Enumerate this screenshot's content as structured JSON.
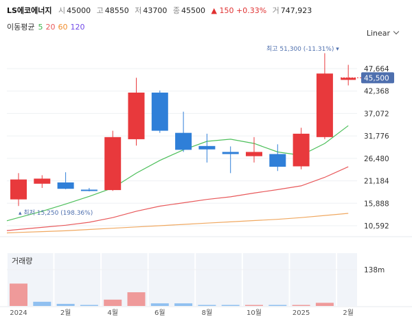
{
  "header": {
    "name": "LS에코에너지",
    "open_label": "시",
    "open": "45000",
    "high_label": "고",
    "high": "48550",
    "low_label": "저",
    "low": "43700",
    "close_label": "종",
    "close": "45500",
    "change": "▲ 150 +0.33%",
    "volume_label": "거",
    "volume": "747,923"
  },
  "moving_average": {
    "label": "이동평균",
    "periods": [
      {
        "text": "5",
        "color": "#3bb34a"
      },
      {
        "text": "20",
        "color": "#e8585a"
      },
      {
        "text": "60",
        "color": "#f08c2a"
      },
      {
        "text": "120",
        "color": "#7048e8"
      }
    ]
  },
  "scale_mode": "Linear",
  "price_axis_labels": [
    "47,664",
    "42,368",
    "37,072",
    "31,776",
    "26,480",
    "21,184",
    "15,888",
    "10,592"
  ],
  "current_price_tag": "45,500",
  "max_annotation": "최고 51,300 (-11.31%)",
  "min_annotation": "최저 15,250 (198.36%)",
  "volume_title": "거래량",
  "volume_axis_label": "138m",
  "x_axis_labels": [
    "2024",
    "2월",
    "4월",
    "6월",
    "8월",
    "10월",
    "2025",
    "2월"
  ],
  "chart_data": {
    "type": "candlestick",
    "interval": "monthly",
    "candles": [
      {
        "open": 16800,
        "high": 23000,
        "low": 15250,
        "close": 21500
      },
      {
        "open": 20500,
        "high": 22500,
        "low": 19500,
        "close": 21700
      },
      {
        "open": 20800,
        "high": 23200,
        "low": 19200,
        "close": 19300
      },
      {
        "open": 19100,
        "high": 19500,
        "low": 18700,
        "close": 18900
      },
      {
        "open": 19000,
        "high": 33000,
        "low": 18800,
        "close": 31500
      },
      {
        "open": 31000,
        "high": 45500,
        "low": 29500,
        "close": 42000
      },
      {
        "open": 42000,
        "high": 42500,
        "low": 32500,
        "close": 33000
      },
      {
        "open": 32500,
        "high": 37500,
        "low": 28000,
        "close": 28500
      },
      {
        "open": 29400,
        "high": 32300,
        "low": 25500,
        "close": 28600
      },
      {
        "open": 28000,
        "high": 29300,
        "low": 23000,
        "close": 27500
      },
      {
        "open": 27000,
        "high": 31500,
        "low": 25500,
        "close": 28000
      },
      {
        "open": 27500,
        "high": 29800,
        "low": 23500,
        "close": 24500
      },
      {
        "open": 24600,
        "high": 33700,
        "low": 23900,
        "close": 32300
      },
      {
        "open": 31500,
        "high": 51300,
        "low": 31000,
        "close": 46500
      },
      {
        "open": 45000,
        "high": 48550,
        "low": 43700,
        "close": 45500
      }
    ],
    "ma5": [
      12500,
      14000,
      15700,
      17500,
      19500,
      23000,
      26000,
      28500,
      30500,
      31000,
      30000,
      28000,
      27200,
      30000,
      34200
    ],
    "ma20": [
      9700,
      10200,
      10700,
      11400,
      12500,
      14000,
      15200,
      16000,
      16800,
      17400,
      18300,
      19100,
      20000,
      22000,
      24500
    ],
    "ma60": [
      9000,
      9200,
      9400,
      9700,
      10000,
      10300,
      10600,
      10900,
      11200,
      11500,
      11800,
      12100,
      12500,
      13000,
      13500
    ],
    "volume_m": [
      85,
      16,
      8,
      2,
      24,
      52,
      10,
      10,
      3,
      1,
      1,
      1,
      1,
      12,
      0
    ],
    "volume_up": [
      true,
      false,
      false,
      false,
      true,
      true,
      false,
      false,
      false,
      false,
      true,
      false,
      true,
      true,
      true
    ],
    "y_axis_ticks": [
      10592,
      15888,
      21184,
      26480,
      31776,
      37072,
      42368,
      47664
    ],
    "volume_axis_tick": 138
  }
}
